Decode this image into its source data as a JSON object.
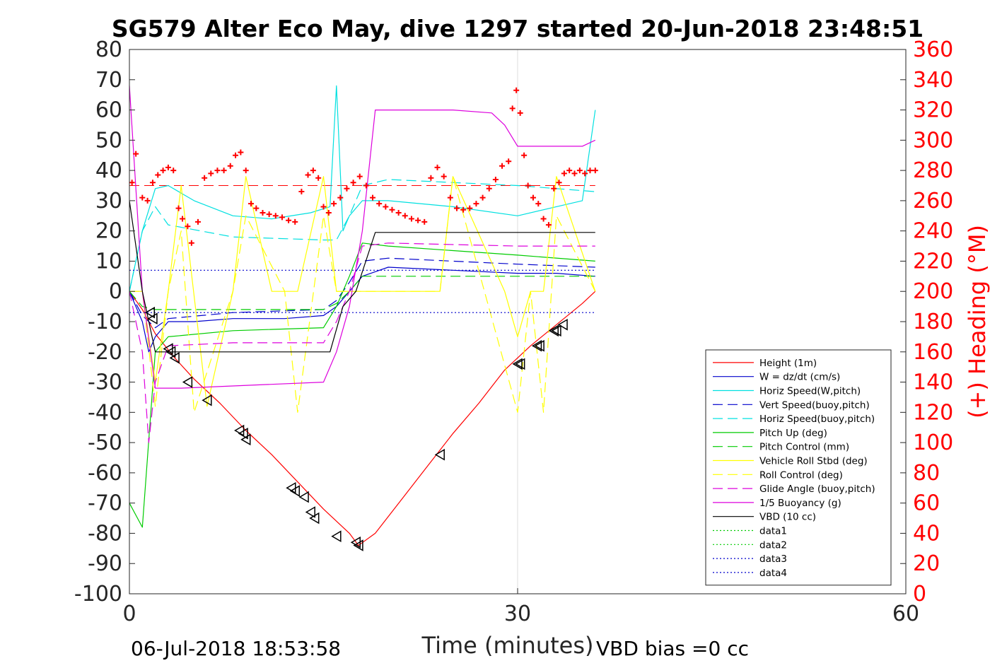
{
  "chart_data": {
    "type": "line",
    "title": "SG579 Alter Eco May, dive 1297 started 20-Jun-2018 23:48:51",
    "xlabel": "Time (minutes)",
    "ylabel_right": "(+) Heading (°M)",
    "footer_left": "06-Jul-2018 18:53:58",
    "footer_right": "VBD bias =0 cc",
    "xlim": [
      0,
      60
    ],
    "ylim": [
      -100,
      80
    ],
    "ylim_right": [
      0,
      360
    ],
    "xticks": [
      "0",
      "30",
      "60"
    ],
    "yticks": [
      "80",
      "70",
      "60",
      "50",
      "40",
      "30",
      "20",
      "10",
      "0",
      "-10",
      "-20",
      "-30",
      "-40",
      "-50",
      "-60",
      "-70",
      "-80",
      "-90",
      "-100"
    ],
    "yticks_right": [
      "360",
      "340",
      "320",
      "300",
      "280",
      "260",
      "240",
      "220",
      "200",
      "180",
      "160",
      "140",
      "120",
      "100",
      "80",
      "60",
      "40",
      "20",
      "0"
    ],
    "grid": "x only",
    "legend_position": "lower-right",
    "series": [
      {
        "name": "Height (1m)",
        "color": "#ff0000",
        "style": "solid",
        "x": [
          0,
          1,
          2,
          3.5,
          5,
          7,
          9,
          11,
          13,
          15,
          17,
          17.7,
          19,
          21,
          23,
          25,
          27,
          29,
          31,
          33,
          35,
          36
        ],
        "y": [
          0,
          -6,
          -14,
          -22,
          -29,
          -37,
          -46,
          -54,
          -63,
          -72,
          -80,
          -84,
          -80,
          -69,
          -58,
          -47,
          -37,
          -26,
          -18,
          -11,
          -4,
          0
        ]
      },
      {
        "name": "W = dz/dt (cm/s)",
        "color": "#0000cc",
        "style": "solid",
        "x": [
          0,
          1,
          1.5,
          2,
          3,
          5,
          8,
          12,
          15,
          16,
          17,
          18,
          20,
          25,
          30,
          33,
          36
        ],
        "y": [
          0,
          -10,
          -20,
          -15,
          -10,
          -10,
          -9,
          -9,
          -8,
          -5,
          0,
          5,
          8,
          7,
          6,
          6,
          5
        ]
      },
      {
        "name": "Horiz Speed(W,pitch)",
        "color": "#00e0e0",
        "style": "solid",
        "x": [
          0,
          1,
          2,
          3,
          5,
          8,
          11,
          14,
          15.5,
          16,
          16.5,
          17,
          18,
          20,
          25,
          30,
          33,
          35,
          36
        ],
        "y": [
          0,
          20,
          34,
          35,
          30,
          25,
          24,
          26,
          28,
          68,
          20,
          25,
          30,
          30,
          28,
          25,
          28,
          30,
          60
        ]
      },
      {
        "name": "Vert Speed(buoy,pitch)",
        "color": "#0000cc",
        "style": "dash",
        "x": [
          0,
          1,
          2,
          3,
          8,
          15,
          16,
          17,
          18,
          20,
          30,
          36
        ],
        "y": [
          0,
          -8,
          -12,
          -9,
          -7,
          -6,
          -3,
          3,
          10,
          11,
          9,
          8
        ]
      },
      {
        "name": "Horiz Speed(buoy,pitch)",
        "color": "#00e0e0",
        "style": "dash",
        "x": [
          0,
          1,
          2,
          3,
          8,
          15,
          16,
          17,
          18,
          20,
          30,
          36
        ],
        "y": [
          0,
          20,
          28,
          22,
          18,
          17,
          17,
          25,
          35,
          37,
          35,
          33
        ]
      },
      {
        "name": "Pitch Up (deg)",
        "color": "#00cc00",
        "style": "solid",
        "x": [
          0,
          1,
          2,
          3,
          8,
          15,
          16,
          17,
          18,
          20,
          30,
          36
        ],
        "y": [
          -70,
          -78,
          -20,
          -15,
          -13,
          -12,
          -5,
          5,
          16,
          15,
          12,
          10
        ]
      },
      {
        "name": "Pitch Control (mm)",
        "color": "#00cc00",
        "style": "dash",
        "x": [
          0,
          1,
          2,
          3,
          8,
          15,
          16,
          17,
          18,
          20,
          30,
          36
        ],
        "y": [
          0,
          -5,
          -6,
          -6,
          -6,
          -6,
          -4,
          0,
          5,
          5,
          5,
          5
        ]
      },
      {
        "name": "Vehicle Roll Stbd (deg)",
        "color": "#ffff00",
        "style": "solid",
        "x": [
          0,
          1,
          2,
          3,
          4,
          6,
          8,
          9,
          11,
          13,
          15,
          16,
          18,
          20,
          24,
          25,
          29,
          30,
          31,
          32,
          33,
          36
        ],
        "y": [
          0,
          0,
          -30,
          0,
          35,
          -38,
          0,
          38,
          0,
          0,
          38,
          0,
          0,
          0,
          0,
          38,
          0,
          -15,
          0,
          0,
          38,
          0
        ]
      },
      {
        "name": "Roll Control (deg)",
        "color": "#ffff00",
        "style": "dash",
        "x": [
          0,
          1,
          2,
          3,
          4,
          5,
          8,
          9,
          12,
          13,
          15,
          16,
          18,
          24,
          25,
          30,
          31,
          32,
          33,
          36
        ],
        "y": [
          0,
          0,
          -38,
          0,
          20,
          -40,
          0,
          25,
          0,
          -40,
          25,
          0,
          0,
          0,
          38,
          -40,
          0,
          -40,
          25,
          0
        ]
      },
      {
        "name": "Glide Angle (buoy,pitch)",
        "color": "#dd00dd",
        "style": "dash",
        "x": [
          0,
          1,
          1.5,
          2,
          3,
          8,
          15,
          16,
          17,
          18,
          20,
          30,
          36
        ],
        "y": [
          0,
          -20,
          -50,
          -30,
          -18,
          -17,
          -17,
          -10,
          0,
          15,
          16,
          15,
          15
        ]
      },
      {
        "name": "1/5 Buoyancy (g)",
        "color": "#dd00dd",
        "style": "solid",
        "x": [
          0,
          1,
          2,
          4,
          15,
          16,
          17,
          18,
          19,
          25,
          28,
          29,
          30,
          31,
          35,
          36
        ],
        "y": [
          68,
          0,
          -32,
          -32,
          -30,
          -20,
          -5,
          20,
          60,
          60,
          59,
          55,
          48,
          48,
          48,
          50
        ]
      },
      {
        "name": "VBD (10 cc)",
        "color": "#000000",
        "style": "solid",
        "x": [
          0,
          1,
          2,
          15.5,
          16.5,
          17.5,
          19,
          36
        ],
        "y": [
          30,
          0,
          -20,
          -20,
          -5,
          0,
          19.5,
          19.5
        ]
      },
      {
        "name": "data1",
        "color": "#00cc00",
        "style": "dot",
        "x": [],
        "y": []
      },
      {
        "name": "data2",
        "color": "#00cc00",
        "style": "dot",
        "x": [],
        "y": []
      },
      {
        "name": "data3",
        "color": "#0000cc",
        "style": "dot",
        "x": [
          0,
          36
        ],
        "y": [
          7,
          7
        ]
      },
      {
        "name": "data4",
        "color": "#0000cc",
        "style": "dot",
        "x": [
          0,
          36
        ],
        "y": [
          -7,
          -7
        ]
      }
    ],
    "heading_reference": {
      "color": "#ff0000",
      "style": "dash",
      "value_right_axis": 270
    },
    "heading_points": {
      "color": "#ff0000",
      "marker": "+",
      "axis": "right",
      "x": [
        0.2,
        0.5,
        1.0,
        1.4,
        1.8,
        2.2,
        2.6,
        3.0,
        3.4,
        3.8,
        4.1,
        4.5,
        4.8,
        5.3,
        5.8,
        6.3,
        6.8,
        7.3,
        7.8,
        8.2,
        8.6,
        9.0,
        9.4,
        9.8,
        10.3,
        10.8,
        11.3,
        11.8,
        12.3,
        12.8,
        13.3,
        13.8,
        14.2,
        14.6,
        15.0,
        15.4,
        15.8,
        16.3,
        16.8,
        17.3,
        17.8,
        18.3,
        18.8,
        19.3,
        19.8,
        20.3,
        20.8,
        21.3,
        21.8,
        22.3,
        22.8,
        23.3,
        23.8,
        24.3,
        24.8,
        25.3,
        25.8,
        26.3,
        26.8,
        27.3,
        27.8,
        28.3,
        28.8,
        29.3,
        29.6,
        29.9,
        30.2,
        30.5,
        30.8,
        31.2,
        31.6,
        32.0,
        32.4,
        32.8,
        33.2,
        33.6,
        34.0,
        34.4,
        34.8,
        35.2,
        35.6,
        36.0
      ],
      "y": [
        272,
        291,
        262,
        260,
        272,
        277,
        280,
        282,
        280,
        255,
        248,
        243,
        232,
        246,
        275,
        278,
        280,
        280,
        283,
        290,
        292,
        280,
        258,
        255,
        252,
        251,
        250,
        249,
        247,
        246,
        266,
        277,
        280,
        275,
        256,
        252,
        258,
        262,
        268,
        272,
        276,
        270,
        262,
        258,
        256,
        254,
        252,
        250,
        248,
        247,
        246,
        275,
        282,
        276,
        262,
        255,
        254,
        255,
        258,
        262,
        268,
        274,
        283,
        286,
        321,
        333,
        318,
        290,
        270,
        262,
        258,
        248,
        244,
        268,
        272,
        278,
        280,
        278,
        280,
        278,
        280,
        280
      ]
    },
    "event_markers": {
      "marker": "triangle",
      "color": "#000000",
      "x": [
        1.6,
        1.8,
        3.0,
        3.2,
        3.5,
        4.5,
        6.0,
        8.5,
        8.8,
        9.0,
        12.5,
        12.8,
        13.5,
        14.0,
        14.3,
        16.0,
        17.5,
        17.7,
        24.0,
        30.0,
        30.2,
        31.5,
        31.7,
        32.8,
        33.0,
        33.5
      ],
      "y": [
        -7,
        -9,
        -19,
        -20,
        -22,
        -30,
        -36,
        -46,
        -47,
        -49,
        -65,
        -66,
        -68,
        -73,
        -75,
        -81,
        -83,
        -84,
        -54,
        -24,
        -24,
        -18,
        -18,
        -13,
        -13,
        -11
      ]
    }
  }
}
